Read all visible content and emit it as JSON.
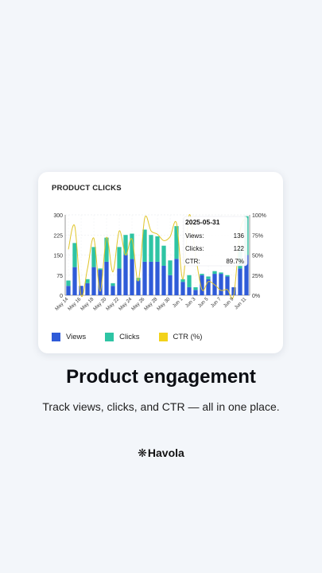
{
  "card": {
    "title": "PRODUCT CLICKS",
    "tooltip": {
      "date": "2025-05-31",
      "rows": [
        {
          "label": "Views:",
          "value": "136"
        },
        {
          "label": "Clicks:",
          "value": "122"
        },
        {
          "label": "CTR:",
          "value": "89.7%"
        }
      ]
    },
    "legend": [
      {
        "label": "Views",
        "color": "#2f5bd8"
      },
      {
        "label": "Clicks",
        "color": "#2ec4a4"
      },
      {
        "label": "CTR (%)",
        "color": "#f2d21a"
      }
    ]
  },
  "chart_data": {
    "type": "bar",
    "stacked": true,
    "categories": [
      "May 14",
      "May 15",
      "May 16",
      "May 17",
      "May 18",
      "May 19",
      "May 20",
      "May 21",
      "May 22",
      "May 23",
      "May 24",
      "May 25",
      "May 26",
      "May 27",
      "May 28",
      "May 29",
      "May 30",
      "May 31",
      "Jun 1",
      "Jun 2",
      "Jun 3",
      "Jun 4",
      "Jun 5",
      "Jun 6",
      "Jun 7",
      "Jun 8",
      "Jun 9",
      "Jun 10",
      "Jun 11"
    ],
    "x_tick_labels": [
      "May 14",
      "May 16",
      "May 18",
      "May 20",
      "May 22",
      "May 24",
      "May 26",
      "May 28",
      "May 30",
      "Jun 1",
      "Jun 3",
      "Jun 5",
      "Jun 7",
      "Jun 9",
      "Jun 11"
    ],
    "series": [
      {
        "name": "Views",
        "values": [
          35,
          105,
          35,
          45,
          105,
          95,
          125,
          35,
          100,
          150,
          135,
          55,
          125,
          125,
          125,
          110,
          75,
          136,
          50,
          30,
          20,
          75,
          60,
          80,
          80,
          70,
          30,
          100,
          150
        ]
      },
      {
        "name": "Clicks",
        "values": [
          20,
          90,
          0,
          15,
          75,
          5,
          90,
          10,
          80,
          75,
          95,
          10,
          120,
          100,
          95,
          75,
          55,
          122,
          10,
          45,
          10,
          5,
          10,
          10,
          5,
          5,
          0,
          80,
          145
        ]
      },
      {
        "name": "CTR (%)",
        "values": [
          57,
          86,
          0,
          33,
          71,
          5,
          72,
          29,
          80,
          50,
          70,
          18,
          96,
          80,
          76,
          68,
          73,
          89.7,
          20,
          100,
          50,
          7,
          17,
          13,
          6,
          7,
          0,
          80,
          97
        ]
      }
    ],
    "y_left": {
      "min": 0,
      "max": 300,
      "ticks": [
        0,
        75,
        150,
        225,
        300
      ]
    },
    "y_right": {
      "min": 0,
      "max": 100,
      "ticks": [
        "0%",
        "25%",
        "50%",
        "75%",
        "100%"
      ]
    },
    "grid": true,
    "legend_position": "bottom"
  },
  "headline": "Product engagement",
  "subheadline": "Track views, clicks, and CTR — all in one place.",
  "brand": {
    "symbol": "❋",
    "name": "Havola"
  }
}
